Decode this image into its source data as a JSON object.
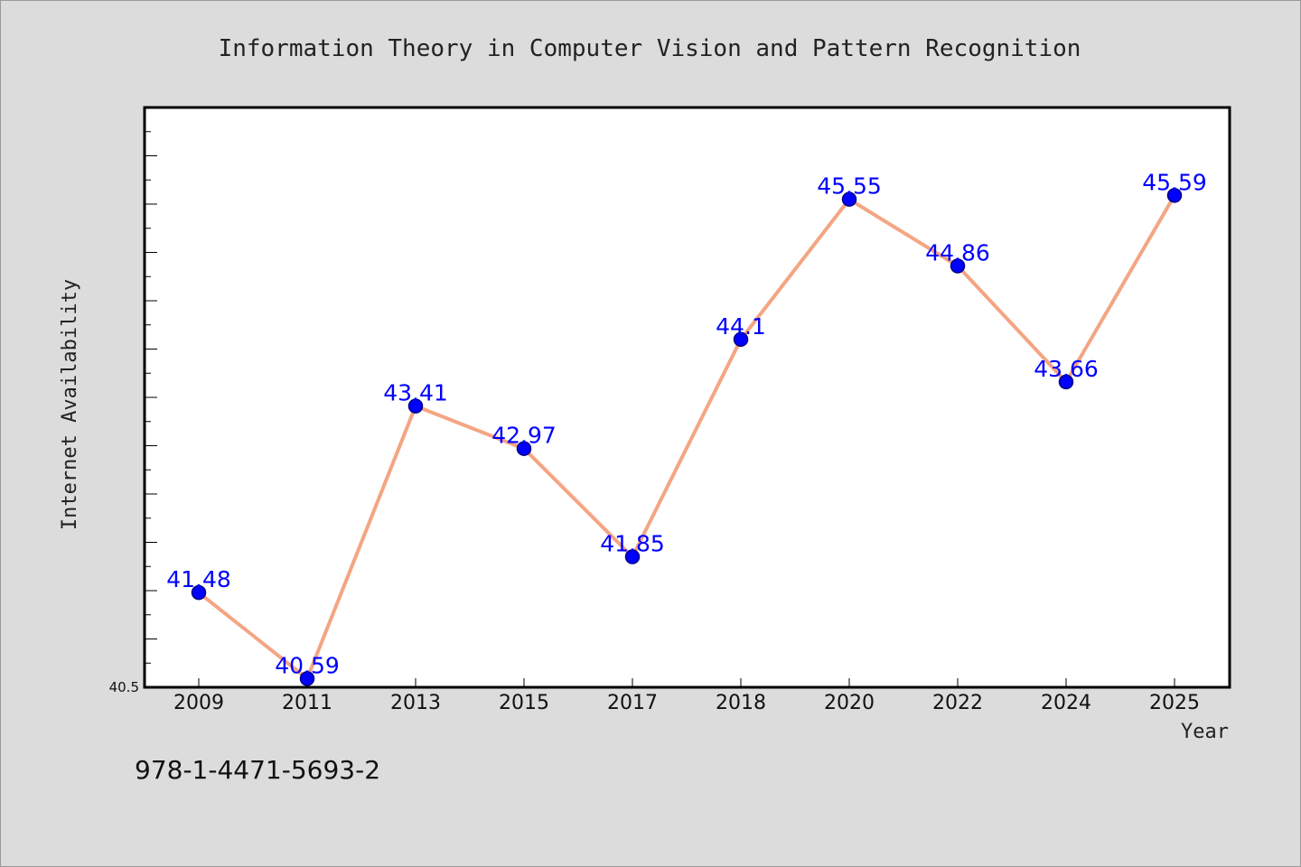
{
  "chart_data": {
    "type": "line",
    "title": "Information Theory in Computer Vision and Pattern Recognition",
    "xlabel": "Year",
    "ylabel": "Internet Availability",
    "categories": [
      "2009",
      "2011",
      "2013",
      "2015",
      "2017",
      "2018",
      "2020",
      "2022",
      "2024",
      "2025"
    ],
    "values": [
      41.48,
      40.59,
      43.41,
      42.97,
      41.85,
      44.1,
      45.55,
      44.86,
      43.66,
      45.59
    ],
    "data_labels": [
      "41.48",
      "40.59",
      "43.41",
      "42.97",
      "41.85",
      "44.1",
      "45.55",
      "44.86",
      "43.66",
      "45.59"
    ],
    "ylim": [
      40.5,
      46.5
    ],
    "y_tick_labels": [
      {
        "value": 40.5,
        "label": "40.5"
      }
    ],
    "grid": false,
    "colors": {
      "line": "#f4a582",
      "marker": "#0000ff",
      "marker_edge": "#000080",
      "data_label": "#0000ff",
      "plot_background": "#ffffff",
      "figure_background": "#dcdcdc"
    }
  },
  "footer": {
    "isbn": "978-1-4471-5693-2"
  }
}
